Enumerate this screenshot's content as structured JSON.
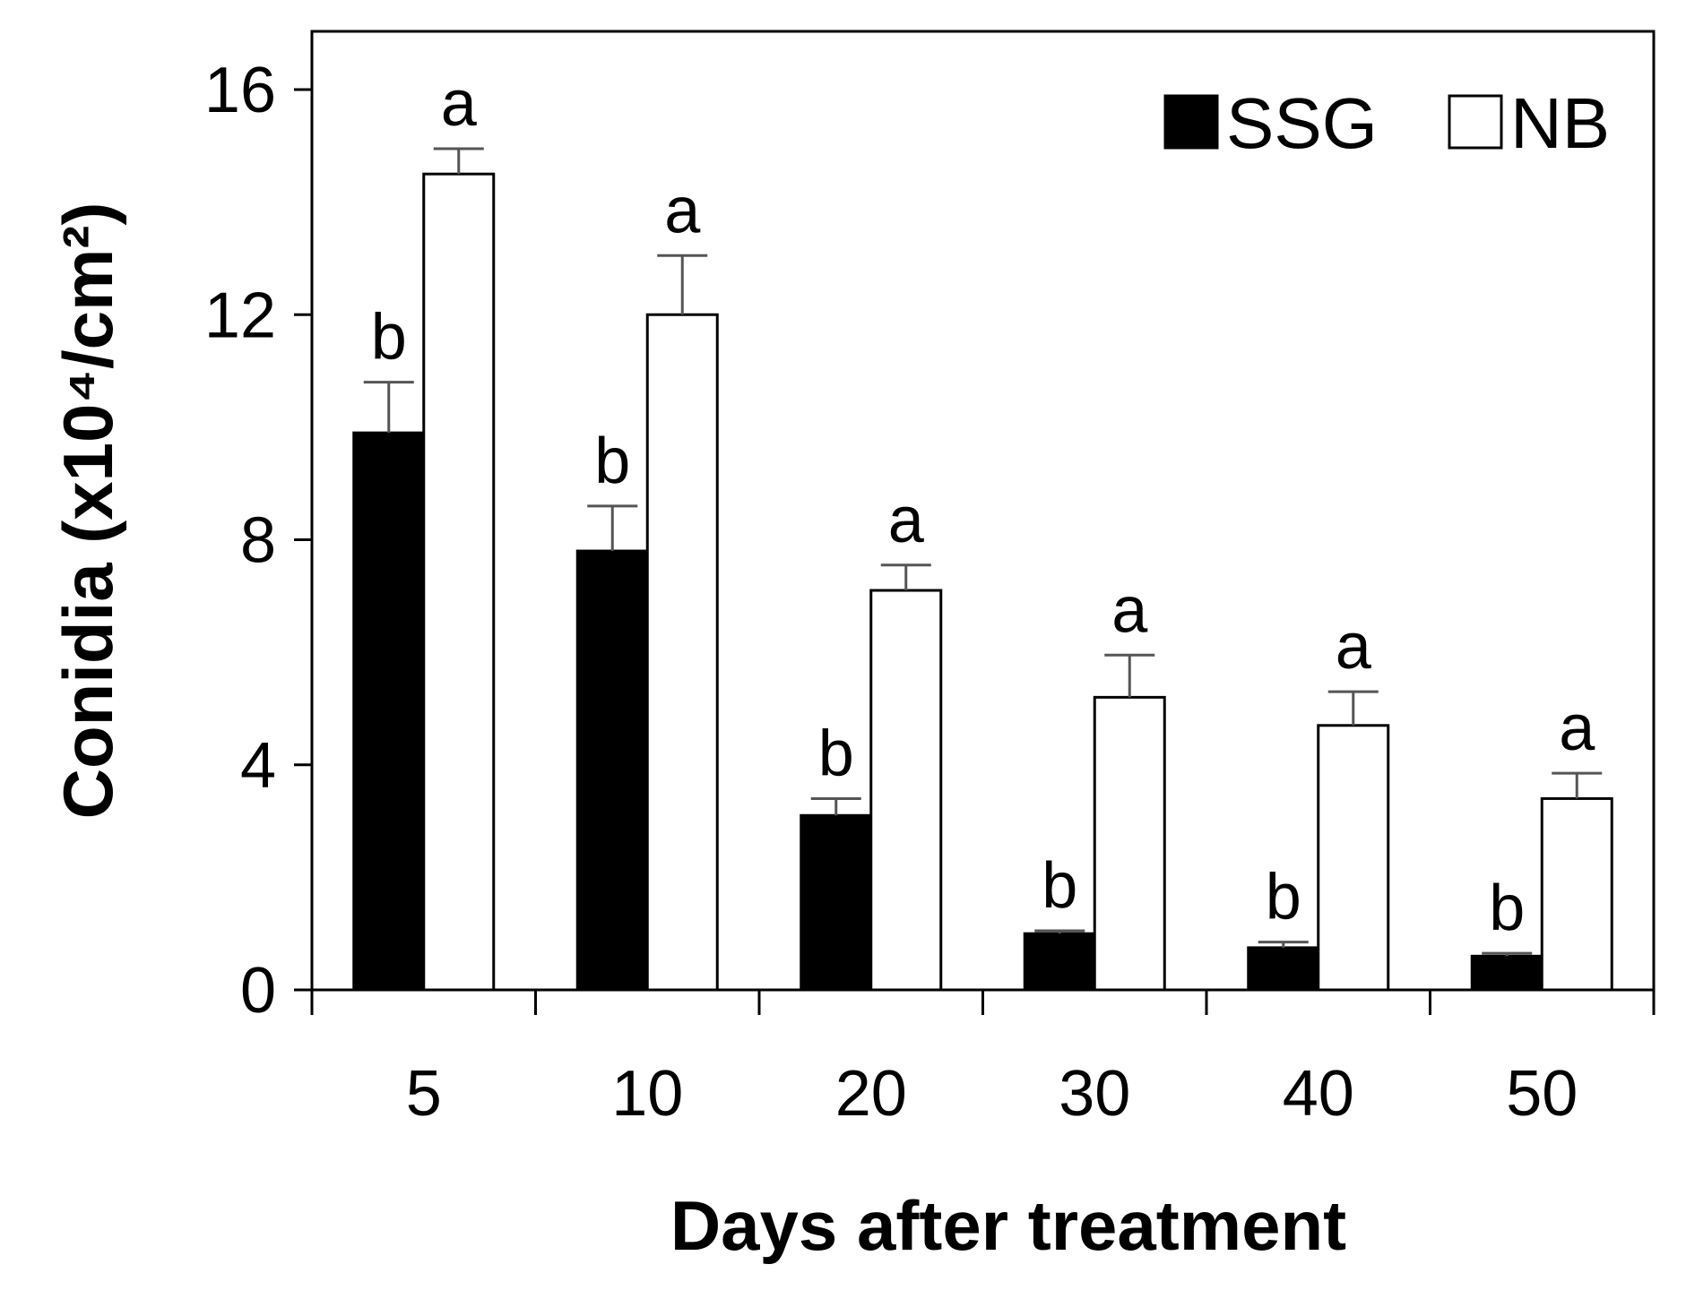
{
  "chart_data": {
    "type": "bar",
    "title": "",
    "xlabel": "Days after treatment",
    "ylabel": "Conidia (x10⁴/cm²)",
    "ylim": [
      0,
      16
    ],
    "yticks": [
      "0",
      "4",
      "8",
      "12",
      "16"
    ],
    "categories": [
      "5",
      "10",
      "20",
      "30",
      "40",
      "50"
    ],
    "legend_position": "top-right",
    "series": [
      {
        "name": "SSG",
        "color": "#000000",
        "values": [
          9.9,
          7.8,
          3.1,
          1.0,
          0.75,
          0.6
        ],
        "errors": [
          0.9,
          0.8,
          0.3,
          0.05,
          0.1,
          0.05
        ],
        "letters": [
          "b",
          "b",
          "b",
          "b",
          "b",
          "b"
        ]
      },
      {
        "name": "NB",
        "color": "#ffffff",
        "values": [
          14.5,
          12.0,
          7.1,
          5.2,
          4.7,
          3.4
        ],
        "errors": [
          0.45,
          1.05,
          0.45,
          0.75,
          0.6,
          0.45
        ],
        "letters": [
          "a",
          "a",
          "a",
          "a",
          "a",
          "a"
        ]
      }
    ]
  }
}
